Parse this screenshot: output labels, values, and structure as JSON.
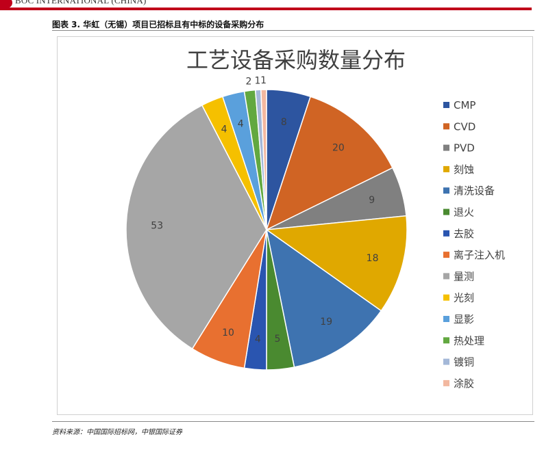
{
  "header": {
    "brand": "BOC INTERNATIONAL (CHINA)",
    "accent_color": "#c0001a"
  },
  "caption": "图表 3. 华虹（无锡）项目已招标且有中标的设备采购分布",
  "source": "资料来源：中国国际招标网，中银国际证券",
  "chart_data": {
    "type": "pie",
    "title": "工艺设备采购数量分布",
    "legend_position": "right",
    "categories": [
      "CMP",
      "CVD",
      "PVD",
      "刻蚀",
      "清洗设备",
      "退火",
      "去胶",
      "离子注入机",
      "量测",
      "光刻",
      "显影",
      "热处理",
      "镀铜",
      "涂胶"
    ],
    "values": [
      8,
      20,
      9,
      18,
      19,
      5,
      4,
      10,
      53,
      4,
      4,
      2,
      1,
      1
    ],
    "colors": [
      "#2d55a0",
      "#d06424",
      "#808080",
      "#e0a800",
      "#3e73b0",
      "#4a8a30",
      "#2a55b0",
      "#e87030",
      "#a6a6a6",
      "#f5c000",
      "#5aa0dc",
      "#62a840",
      "#a4b8d8",
      "#f2b8a0"
    ]
  }
}
